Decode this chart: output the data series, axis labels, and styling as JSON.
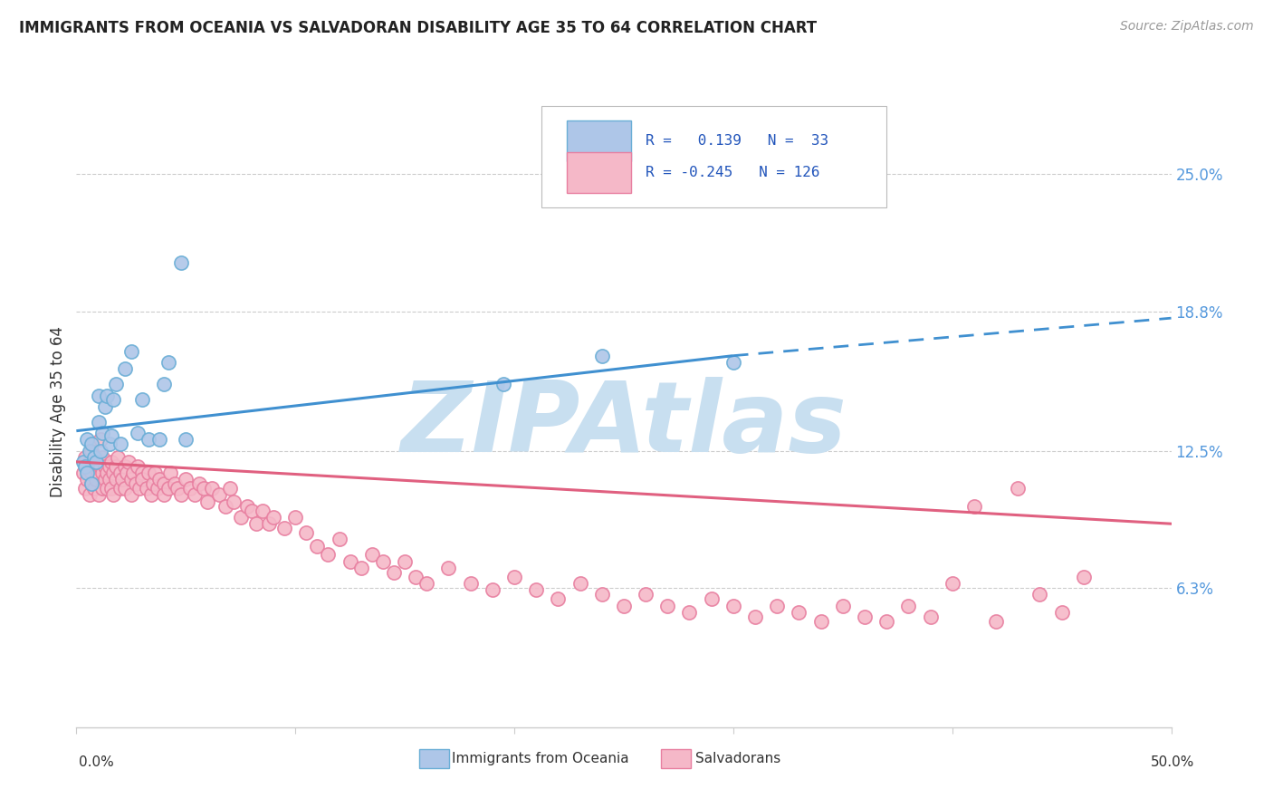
{
  "title": "IMMIGRANTS FROM OCEANIA VS SALVADORAN DISABILITY AGE 35 TO 64 CORRELATION CHART",
  "source": "Source: ZipAtlas.com",
  "ylabel": "Disability Age 35 to 64",
  "y_tick_labels": [
    "6.3%",
    "12.5%",
    "18.8%",
    "25.0%"
  ],
  "y_tick_values": [
    0.063,
    0.125,
    0.188,
    0.25
  ],
  "x_range": [
    0.0,
    0.5
  ],
  "y_range": [
    0.0,
    0.285
  ],
  "legend_label1": "Immigrants from Oceania",
  "legend_label2": "Salvadorans",
  "color_oceania_fill": "#aec6e8",
  "color_oceania_edge": "#6aaed6",
  "color_salvadoran_fill": "#f5b8c8",
  "color_salvadoran_edge": "#e87fa0",
  "color_line_oceania": "#4090d0",
  "color_line_salvadoran": "#e06080",
  "watermark_text": "ZIPAtlas",
  "watermark_color": "#c8dff0",
  "oceania_x": [
    0.003,
    0.004,
    0.005,
    0.005,
    0.006,
    0.007,
    0.007,
    0.008,
    0.009,
    0.01,
    0.01,
    0.011,
    0.012,
    0.013,
    0.014,
    0.015,
    0.016,
    0.017,
    0.018,
    0.02,
    0.022,
    0.025,
    0.028,
    0.03,
    0.033,
    0.038,
    0.04,
    0.042,
    0.048,
    0.05,
    0.195,
    0.24,
    0.3
  ],
  "oceania_y": [
    0.12,
    0.118,
    0.115,
    0.13,
    0.125,
    0.11,
    0.128,
    0.122,
    0.12,
    0.138,
    0.15,
    0.125,
    0.133,
    0.145,
    0.15,
    0.128,
    0.132,
    0.148,
    0.155,
    0.128,
    0.162,
    0.17,
    0.133,
    0.148,
    0.13,
    0.13,
    0.155,
    0.165,
    0.21,
    0.13,
    0.155,
    0.168,
    0.165
  ],
  "salvadoran_x": [
    0.003,
    0.004,
    0.004,
    0.005,
    0.005,
    0.006,
    0.006,
    0.007,
    0.007,
    0.007,
    0.008,
    0.008,
    0.009,
    0.009,
    0.01,
    0.01,
    0.01,
    0.011,
    0.011,
    0.012,
    0.012,
    0.012,
    0.013,
    0.013,
    0.014,
    0.014,
    0.015,
    0.015,
    0.016,
    0.016,
    0.017,
    0.017,
    0.018,
    0.018,
    0.019,
    0.02,
    0.02,
    0.021,
    0.022,
    0.022,
    0.023,
    0.024,
    0.025,
    0.025,
    0.026,
    0.027,
    0.028,
    0.029,
    0.03,
    0.03,
    0.032,
    0.033,
    0.034,
    0.035,
    0.036,
    0.037,
    0.038,
    0.04,
    0.04,
    0.042,
    0.043,
    0.045,
    0.046,
    0.048,
    0.05,
    0.052,
    0.054,
    0.056,
    0.058,
    0.06,
    0.062,
    0.065,
    0.068,
    0.07,
    0.072,
    0.075,
    0.078,
    0.08,
    0.082,
    0.085,
    0.088,
    0.09,
    0.095,
    0.1,
    0.105,
    0.11,
    0.115,
    0.12,
    0.125,
    0.13,
    0.135,
    0.14,
    0.145,
    0.15,
    0.155,
    0.16,
    0.17,
    0.18,
    0.19,
    0.2,
    0.21,
    0.22,
    0.23,
    0.24,
    0.25,
    0.26,
    0.27,
    0.28,
    0.29,
    0.3,
    0.31,
    0.32,
    0.33,
    0.34,
    0.35,
    0.36,
    0.37,
    0.38,
    0.39,
    0.4,
    0.41,
    0.42,
    0.43,
    0.44,
    0.45,
    0.46
  ],
  "salvadoran_y": [
    0.115,
    0.122,
    0.108,
    0.118,
    0.112,
    0.12,
    0.105,
    0.125,
    0.11,
    0.115,
    0.118,
    0.108,
    0.112,
    0.122,
    0.12,
    0.115,
    0.105,
    0.118,
    0.13,
    0.115,
    0.108,
    0.122,
    0.112,
    0.118,
    0.108,
    0.115,
    0.112,
    0.118,
    0.108,
    0.12,
    0.115,
    0.105,
    0.112,
    0.118,
    0.122,
    0.115,
    0.108,
    0.112,
    0.118,
    0.108,
    0.115,
    0.12,
    0.112,
    0.105,
    0.115,
    0.11,
    0.118,
    0.108,
    0.115,
    0.112,
    0.108,
    0.115,
    0.105,
    0.11,
    0.115,
    0.108,
    0.112,
    0.11,
    0.105,
    0.108,
    0.115,
    0.11,
    0.108,
    0.105,
    0.112,
    0.108,
    0.105,
    0.11,
    0.108,
    0.102,
    0.108,
    0.105,
    0.1,
    0.108,
    0.102,
    0.095,
    0.1,
    0.098,
    0.092,
    0.098,
    0.092,
    0.095,
    0.09,
    0.095,
    0.088,
    0.082,
    0.078,
    0.085,
    0.075,
    0.072,
    0.078,
    0.075,
    0.07,
    0.075,
    0.068,
    0.065,
    0.072,
    0.065,
    0.062,
    0.068,
    0.062,
    0.058,
    0.065,
    0.06,
    0.055,
    0.06,
    0.055,
    0.052,
    0.058,
    0.055,
    0.05,
    0.055,
    0.052,
    0.048,
    0.055,
    0.05,
    0.048,
    0.055,
    0.05,
    0.065,
    0.1,
    0.048,
    0.108,
    0.06,
    0.052,
    0.068
  ],
  "line_oceania_x0": 0.0,
  "line_oceania_y0": 0.134,
  "line_oceania_x1": 0.3,
  "line_oceania_y1": 0.168,
  "line_oceania_dash_x1": 0.5,
  "line_oceania_dash_y1": 0.185,
  "line_salv_x0": 0.0,
  "line_salv_y0": 0.12,
  "line_salv_x1": 0.5,
  "line_salv_y1": 0.092
}
